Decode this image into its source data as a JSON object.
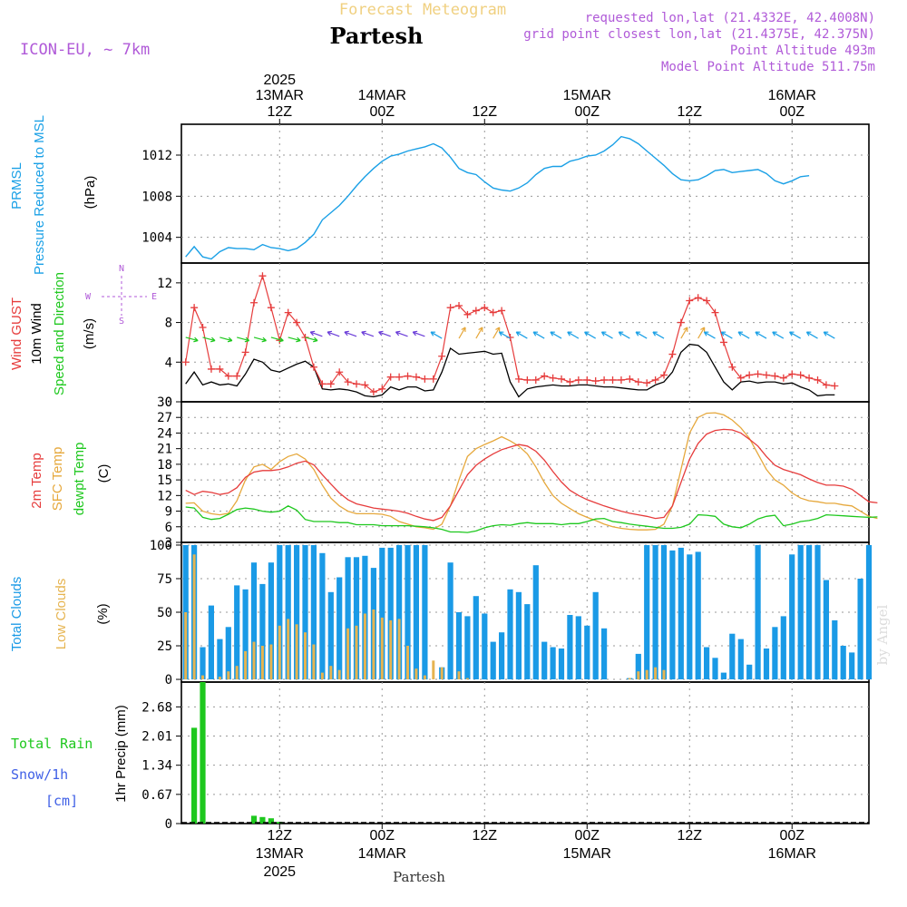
{
  "header": {
    "subtitle": "Forecast Meteogram",
    "location": "Partesh",
    "model": "ICON-EU, ~ 7km",
    "requested": "requested lon,lat (21.4332E, 42.4008N)",
    "grid_point": "grid point closest lon,lat (21.4375E, 42.375N)",
    "point_altitude": "Point Altitude 493m",
    "model_altitude": "Model Point Altitude 511.75m",
    "footer": "Partesh",
    "credit": "by Angel"
  },
  "time_axis": {
    "top": [
      {
        "label": "13MAR\n12Z",
        "year": "2025",
        "hour": 12
      },
      {
        "label": "14MAR\n00Z",
        "hour": 24
      },
      {
        "label": "12Z",
        "hour": 36
      },
      {
        "label": "15MAR\n00Z",
        "hour": 48
      },
      {
        "label": "12Z",
        "hour": 60
      },
      {
        "label": "16MAR\n00Z",
        "hour": 72
      }
    ],
    "bottom": [
      {
        "l1": "12Z",
        "l2": "13MAR",
        "l3": "2025",
        "hour": 12
      },
      {
        "l1": "00Z",
        "l2": "14MAR",
        "hour": 24
      },
      {
        "l1": "12Z",
        "hour": 36
      },
      {
        "l1": "00Z",
        "l2": "15MAR",
        "hour": 48
      },
      {
        "l1": "12Z",
        "hour": 60
      },
      {
        "l1": "00Z",
        "l2": "16MAR",
        "hour": 72
      }
    ]
  },
  "panels": {
    "pressure": {
      "label1": "PRMSL",
      "label2": "Pressure Reduced to MSL",
      "unit": "(hPa)"
    },
    "wind": {
      "label_gust": "Wind GUST",
      "label_wind": "10m Wind",
      "label_dir": "Speed and Direction",
      "unit": "(m/s)",
      "compass_n": "N",
      "compass_s": "S",
      "compass_w": "W",
      "compass_e": "E"
    },
    "temp": {
      "label_2m": "2m Temp",
      "label_sfc": "SFC Temp",
      "label_dew": "dewpt Temp",
      "unit": "(C)"
    },
    "clouds": {
      "label_total": "Total Clouds",
      "label_low": "Low Clouds",
      "unit": "(%)"
    },
    "precip": {
      "label_rain": "Total  Rain",
      "label_snow": "Snow/1h",
      "label_cm": "[cm]",
      "unit": "1hr Precip (mm)"
    }
  },
  "colors": {
    "pressure": "#1aa0e6",
    "gust": "#e63c3c",
    "wind": "#000000",
    "t2m": "#e63c3c",
    "tsfc": "#e6a83c",
    "dew": "#1ec81e",
    "total_cloud": "#1a9ae6",
    "low_cloud": "#e6b450",
    "rain": "#1ec81e"
  },
  "chart_data": [
    {
      "type": "line",
      "name": "pressure",
      "x_start_hour": 1,
      "x_step_hours": 1,
      "ylim": [
        1001.5,
        1015
      ],
      "yticks": [
        1004,
        1008,
        1012
      ],
      "values": [
        1002.1,
        1003.1,
        1002.1,
        1001.9,
        1002.6,
        1003.0,
        1002.9,
        1002.9,
        1002.8,
        1003.3,
        1003.0,
        1002.9,
        1002.7,
        1002.9,
        1003.5,
        1004.3,
        1005.7,
        1006.4,
        1007.1,
        1008.0,
        1009.0,
        1009.9,
        1010.7,
        1011.4,
        1011.9,
        1012.1,
        1012.4,
        1012.6,
        1012.8,
        1013.1,
        1012.7,
        1011.8,
        1010.7,
        1010.3,
        1010.1,
        1009.4,
        1008.8,
        1008.6,
        1008.5,
        1008.8,
        1009.3,
        1010.1,
        1010.7,
        1010.9,
        1010.9,
        1011.4,
        1011.6,
        1011.9,
        1012.0,
        1012.4,
        1013.0,
        1013.8,
        1013.6,
        1013.1,
        1012.4,
        1011.7,
        1011.0,
        1010.2,
        1009.6,
        1009.5,
        1009.6,
        1010.0,
        1010.5,
        1010.6,
        1010.3,
        1010.4,
        1010.5,
        1010.6,
        1010.2,
        1009.5,
        1009.2,
        1009.5,
        1009.9,
        1010.0
      ]
    },
    {
      "type": "line",
      "name": "wind",
      "x_start_hour": 1,
      "x_step_hours": 1,
      "ylim": [
        0,
        14
      ],
      "yticks": [
        0,
        4,
        8,
        12
      ],
      "gust": [
        4.0,
        9.5,
        7.5,
        3.3,
        3.3,
        2.6,
        2.6,
        5.0,
        10.0,
        12.7,
        9.5,
        6.2,
        9.0,
        8.0,
        6.5,
        3.5,
        1.8,
        1.8,
        3.0,
        2.0,
        1.8,
        1.7,
        1.0,
        1.3,
        2.5,
        2.5,
        2.6,
        2.5,
        2.3,
        2.3,
        4.6,
        9.5,
        9.7,
        8.8,
        9.2,
        9.5,
        9.0,
        9.2,
        6.5,
        2.3,
        2.2,
        2.2,
        2.6,
        2.4,
        2.3,
        2.0,
        2.2,
        2.2,
        2.1,
        2.2,
        2.2,
        2.2,
        2.3,
        2.0,
        1.9,
        2.2,
        2.7,
        4.8,
        8.0,
        10.2,
        10.5,
        10.2,
        9.0,
        6.0,
        3.5,
        2.4,
        2.7,
        2.8,
        2.7,
        2.6,
        2.4,
        2.8,
        2.7,
        2.4,
        2.2,
        1.7,
        1.6
      ],
      "wind": [
        1.8,
        3.0,
        1.7,
        2.0,
        1.7,
        1.8,
        1.6,
        2.8,
        4.3,
        4.0,
        3.2,
        3.0,
        3.4,
        3.8,
        4.1,
        3.5,
        1.3,
        1.2,
        1.3,
        1.2,
        1.0,
        0.6,
        0.5,
        0.7,
        1.5,
        1.2,
        1.5,
        1.5,
        1.1,
        1.2,
        3.0,
        5.4,
        4.8,
        4.9,
        5.0,
        5.1,
        4.8,
        4.9,
        2.0,
        0.5,
        1.3,
        1.5,
        1.6,
        1.7,
        1.6,
        1.6,
        1.7,
        1.7,
        1.6,
        1.5,
        1.5,
        1.4,
        1.3,
        1.2,
        1.2,
        1.7,
        2.0,
        3.0,
        5.0,
        5.8,
        5.7,
        5.0,
        3.5,
        2.0,
        1.2,
        2.0,
        2.1,
        1.9,
        2.0,
        2.0,
        1.8,
        1.9,
        1.5,
        1.2,
        0.6,
        0.7,
        0.7
      ]
    },
    {
      "type": "line",
      "name": "temperature",
      "x_start_hour": 1,
      "x_step_hours": 1,
      "ylim": [
        3,
        30
      ],
      "yticks": [
        3,
        6,
        9,
        12,
        15,
        18,
        21,
        24,
        27,
        30
      ],
      "t2m": [
        13.0,
        12.2,
        12.8,
        12.6,
        12.2,
        12.5,
        13.5,
        15.5,
        16.5,
        16.8,
        16.8,
        17.0,
        17.5,
        18.2,
        18.6,
        17.9,
        16.0,
        14.2,
        12.5,
        11.2,
        10.4,
        10.0,
        9.6,
        9.4,
        9.2,
        9.0,
        8.6,
        8.0,
        7.5,
        7.2,
        7.8,
        10.0,
        13.0,
        16.0,
        17.8,
        19.0,
        20.0,
        20.8,
        21.3,
        21.8,
        21.5,
        20.5,
        18.8,
        16.6,
        14.6,
        13.0,
        12.0,
        11.2,
        10.6,
        10.0,
        9.5,
        9.0,
        8.6,
        8.3,
        8.0,
        7.6,
        7.8,
        10.0,
        14.5,
        19.0,
        22.0,
        23.8,
        24.5,
        24.7,
        24.6,
        24.0,
        22.8,
        21.5,
        19.5,
        17.8,
        17.0,
        16.5,
        16.0,
        15.2,
        14.5,
        14.0,
        14.0,
        13.8,
        13.2,
        12.0,
        10.8,
        10.6
      ],
      "tsfc": [
        10.5,
        10.6,
        9.0,
        8.5,
        8.3,
        8.6,
        11.0,
        15.0,
        17.5,
        18.0,
        17.0,
        18.5,
        19.5,
        20.0,
        19.0,
        17.0,
        14.0,
        11.5,
        10.0,
        9.0,
        8.5,
        8.5,
        8.5,
        8.4,
        8.0,
        7.0,
        6.5,
        6.0,
        5.8,
        5.5,
        6.5,
        10.0,
        15.0,
        19.5,
        21.0,
        21.8,
        22.5,
        23.3,
        22.5,
        21.5,
        20.0,
        17.5,
        14.5,
        12.0,
        10.5,
        9.5,
        8.5,
        7.8,
        7.2,
        6.5,
        6.0,
        5.7,
        5.5,
        5.4,
        5.4,
        5.5,
        6.5,
        10.0,
        17.0,
        24.0,
        27.0,
        27.8,
        27.9,
        27.5,
        26.5,
        25.0,
        23.0,
        20.0,
        17.0,
        15.0,
        14.0,
        12.5,
        11.5,
        11.0,
        10.8,
        10.5,
        10.5,
        10.2,
        10.0,
        9.0,
        8.0,
        7.6
      ],
      "dew": [
        9.8,
        9.6,
        7.8,
        7.4,
        7.6,
        8.4,
        9.3,
        9.6,
        9.4,
        9.0,
        8.8,
        9.0,
        10.0,
        9.2,
        7.4,
        7.0,
        7.0,
        7.0,
        6.8,
        6.8,
        6.4,
        6.4,
        6.4,
        6.2,
        6.2,
        6.2,
        6.2,
        6.1,
        6.0,
        5.8,
        5.5,
        5.0,
        5.0,
        4.9,
        5.2,
        5.8,
        6.2,
        6.4,
        6.3,
        6.6,
        6.8,
        6.6,
        6.6,
        6.6,
        6.4,
        6.6,
        6.6,
        7.0,
        7.5,
        7.6,
        7.0,
        6.8,
        6.5,
        6.3,
        6.1,
        5.9,
        5.7,
        5.7,
        5.9,
        6.5,
        8.3,
        8.2,
        8.0,
        6.5,
        6.0,
        5.8,
        6.5,
        7.5,
        8.0,
        8.2,
        6.2,
        6.5,
        7.0,
        7.2,
        7.6,
        8.3,
        8.2,
        8.1,
        8.0,
        7.9,
        7.8,
        7.9
      ]
    },
    {
      "type": "bar",
      "name": "clouds",
      "x_start_hour": 1,
      "x_step_hours": 1,
      "ylim": [
        -2,
        102
      ],
      "yticks": [
        0,
        25,
        50,
        75,
        100
      ],
      "total": [
        100,
        100,
        24,
        55,
        30,
        39,
        70,
        67,
        87,
        71,
        87,
        100,
        100,
        100,
        100,
        100,
        94,
        65,
        76,
        91,
        91,
        92,
        83,
        98,
        98,
        100,
        100,
        100,
        100,
        0,
        9,
        87,
        50,
        47,
        62,
        49,
        28,
        35,
        67,
        65,
        56,
        85,
        28,
        24,
        23,
        48,
        47,
        40,
        65,
        38,
        0,
        0,
        1,
        19,
        100,
        100,
        100,
        96,
        98,
        93,
        95,
        24,
        16,
        5,
        34,
        30,
        11,
        100,
        23,
        39,
        47,
        93,
        100,
        100,
        100,
        74,
        44,
        25,
        20,
        75,
        100
      ],
      "low": [
        50,
        93,
        3,
        0,
        2,
        6,
        10,
        21,
        28,
        25,
        26,
        40,
        45,
        41,
        35,
        26,
        5,
        10,
        7,
        38,
        40,
        49,
        52,
        46,
        44,
        45,
        25,
        8,
        3,
        14,
        9,
        0,
        6,
        1,
        0,
        0,
        0,
        0,
        0,
        0,
        0,
        0,
        0,
        0,
        0,
        0,
        0,
        0,
        0,
        0,
        0,
        0,
        1,
        6,
        7,
        9,
        7,
        0,
        0,
        0,
        0,
        0,
        0,
        0,
        0,
        0,
        0,
        0,
        0,
        0,
        0,
        0,
        0,
        0,
        0,
        0,
        0,
        0,
        0,
        0,
        0
      ]
    },
    {
      "type": "bar",
      "name": "precip",
      "x_start_hour": 1,
      "x_step_hours": 1,
      "ylim": [
        0,
        3.25
      ],
      "yticks": [
        0,
        0.67,
        1.34,
        2.01,
        2.68
      ],
      "rain": [
        0,
        2.2,
        3.25,
        0,
        0,
        0,
        0,
        0,
        0.18,
        0.15,
        0.12,
        0.04,
        0,
        0,
        0,
        0,
        0,
        0,
        0,
        0,
        0,
        0,
        0,
        0,
        0,
        0,
        0,
        0,
        0,
        0,
        0,
        0,
        0,
        0,
        0,
        0,
        0,
        0,
        0,
        0,
        0,
        0,
        0,
        0,
        0,
        0,
        0,
        0,
        0,
        0,
        0,
        0,
        0,
        0,
        0,
        0,
        0,
        0,
        0,
        0,
        0,
        0,
        0,
        0,
        0,
        0,
        0,
        0,
        0,
        0,
        0,
        0,
        0,
        0,
        0,
        0,
        0,
        0,
        0,
        0,
        0
      ]
    }
  ]
}
